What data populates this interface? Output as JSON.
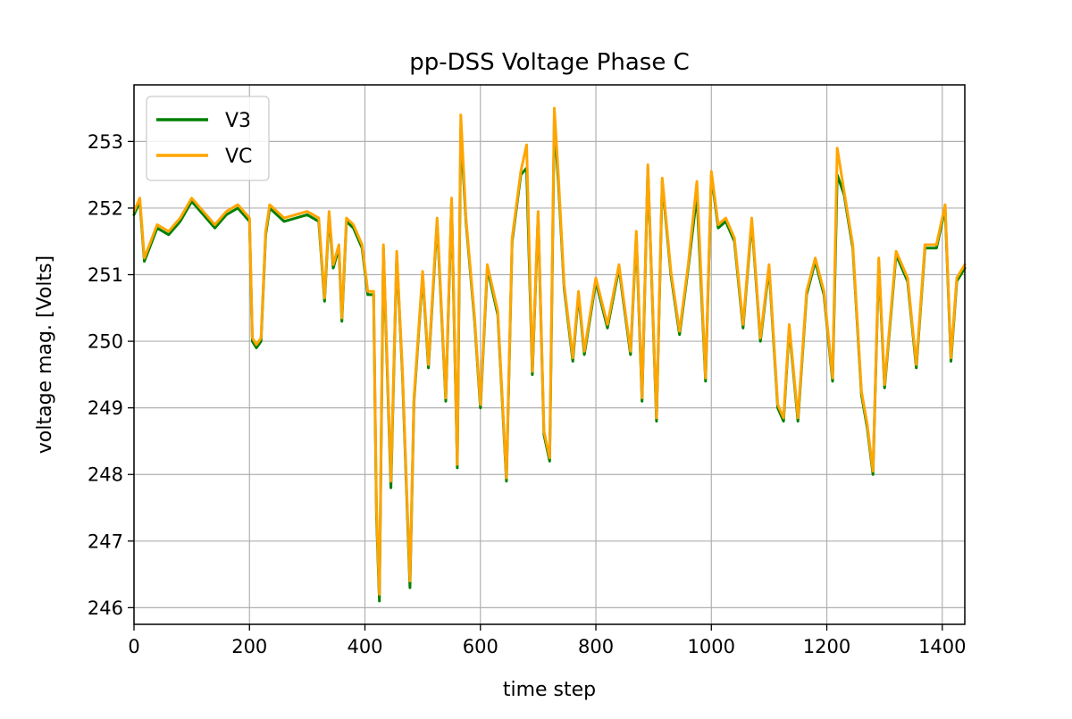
{
  "chart_data": {
    "type": "line",
    "title": "pp-DSS Voltage Phase C",
    "xlabel": "time step",
    "ylabel": "voltage mag. [Volts]",
    "xlim": [
      0,
      1439
    ],
    "ylim": [
      245.75,
      253.85
    ],
    "xticks": [
      0,
      200,
      400,
      600,
      800,
      1000,
      1200,
      1400
    ],
    "yticks": [
      246,
      247,
      248,
      249,
      250,
      251,
      252,
      253
    ],
    "grid": true,
    "legend_position": "upper-left",
    "series": [
      {
        "name": "V3",
        "color": "#008000",
        "x": [
          0,
          10,
          18,
          40,
          60,
          80,
          100,
          120,
          140,
          160,
          180,
          200,
          205,
          212,
          220,
          228,
          235,
          260,
          300,
          320,
          330,
          338,
          345,
          355,
          360,
          368,
          380,
          395,
          405,
          415,
          420,
          425,
          432,
          445,
          455,
          465,
          478,
          485,
          500,
          510,
          525,
          540,
          550,
          560,
          566,
          575,
          590,
          600,
          612,
          630,
          645,
          655,
          670,
          680,
          690,
          700,
          710,
          720,
          728,
          735,
          745,
          760,
          770,
          780,
          800,
          820,
          840,
          860,
          870,
          880,
          890,
          905,
          915,
          930,
          945,
          960,
          975,
          990,
          1000,
          1012,
          1025,
          1040,
          1055,
          1070,
          1085,
          1100,
          1115,
          1125,
          1135,
          1150,
          1165,
          1180,
          1195,
          1210,
          1218,
          1230,
          1245,
          1260,
          1270,
          1280,
          1290,
          1300,
          1320,
          1340,
          1355,
          1370,
          1390,
          1405,
          1415,
          1425,
          1439
        ],
        "values": [
          251.9,
          252.1,
          251.2,
          251.7,
          251.6,
          251.8,
          252.1,
          251.9,
          251.7,
          251.9,
          252.0,
          251.8,
          250.0,
          249.9,
          250.0,
          251.6,
          252.0,
          251.8,
          251.9,
          251.8,
          250.6,
          251.9,
          251.1,
          251.4,
          250.3,
          251.8,
          251.7,
          251.4,
          250.7,
          250.7,
          247.4,
          246.1,
          251.4,
          247.8,
          251.3,
          249.5,
          246.3,
          249.1,
          251.0,
          249.6,
          251.8,
          249.1,
          252.1,
          248.1,
          253.2,
          251.8,
          250.3,
          249.0,
          251.1,
          250.4,
          247.9,
          251.5,
          252.5,
          252.6,
          249.5,
          251.9,
          248.6,
          248.2,
          253.3,
          252.4,
          250.8,
          249.7,
          250.7,
          249.8,
          250.9,
          250.2,
          251.1,
          249.8,
          251.6,
          249.1,
          252.6,
          248.8,
          252.4,
          251.0,
          250.1,
          251.1,
          252.2,
          249.4,
          252.5,
          251.7,
          251.8,
          251.5,
          250.2,
          251.8,
          250.0,
          251.1,
          249.0,
          248.8,
          250.2,
          248.8,
          250.7,
          251.2,
          250.7,
          249.4,
          252.5,
          252.2,
          251.4,
          249.2,
          248.7,
          248.0,
          251.2,
          249.3,
          251.3,
          250.9,
          249.6,
          251.4,
          251.4,
          252.0,
          249.7,
          250.9,
          251.1
        ]
      },
      {
        "name": "VC",
        "color": "#FFA500",
        "x": [
          0,
          10,
          18,
          40,
          60,
          80,
          100,
          120,
          140,
          160,
          180,
          200,
          205,
          212,
          220,
          228,
          235,
          260,
          300,
          320,
          330,
          338,
          345,
          355,
          360,
          368,
          380,
          395,
          405,
          415,
          420,
          425,
          432,
          445,
          455,
          465,
          478,
          485,
          500,
          510,
          525,
          540,
          550,
          560,
          566,
          575,
          590,
          600,
          612,
          630,
          645,
          655,
          670,
          680,
          690,
          700,
          710,
          720,
          728,
          735,
          745,
          760,
          770,
          780,
          800,
          820,
          840,
          860,
          870,
          880,
          890,
          905,
          915,
          930,
          945,
          960,
          975,
          990,
          1000,
          1012,
          1025,
          1040,
          1055,
          1070,
          1085,
          1100,
          1115,
          1125,
          1135,
          1150,
          1165,
          1180,
          1195,
          1210,
          1218,
          1230,
          1245,
          1260,
          1270,
          1280,
          1290,
          1300,
          1320,
          1340,
          1355,
          1370,
          1390,
          1405,
          1415,
          1425,
          1439
        ],
        "values": [
          251.95,
          252.15,
          251.25,
          251.75,
          251.65,
          251.85,
          252.15,
          251.95,
          251.75,
          251.95,
          252.05,
          251.85,
          250.05,
          249.95,
          250.05,
          251.65,
          252.05,
          251.85,
          251.95,
          251.85,
          250.65,
          251.95,
          251.15,
          251.45,
          250.35,
          251.85,
          251.75,
          251.45,
          250.75,
          250.75,
          247.5,
          246.2,
          251.45,
          247.9,
          251.35,
          249.55,
          246.4,
          249.15,
          251.05,
          249.65,
          251.85,
          249.15,
          252.15,
          248.15,
          253.4,
          251.85,
          250.35,
          249.05,
          251.15,
          250.45,
          247.95,
          251.55,
          252.55,
          252.95,
          249.55,
          251.95,
          248.65,
          248.25,
          253.5,
          252.5,
          250.85,
          249.75,
          250.75,
          249.85,
          250.95,
          250.25,
          251.15,
          249.85,
          251.65,
          249.15,
          252.65,
          248.85,
          252.45,
          251.05,
          250.15,
          251.15,
          252.4,
          249.45,
          252.55,
          251.75,
          251.85,
          251.55,
          250.25,
          251.85,
          250.05,
          251.15,
          249.05,
          248.85,
          250.25,
          248.85,
          250.75,
          251.25,
          250.75,
          249.45,
          252.9,
          252.25,
          251.45,
          249.25,
          248.75,
          248.05,
          251.25,
          249.35,
          251.35,
          250.95,
          249.65,
          251.45,
          251.45,
          252.05,
          249.75,
          250.95,
          251.15
        ]
      }
    ]
  }
}
